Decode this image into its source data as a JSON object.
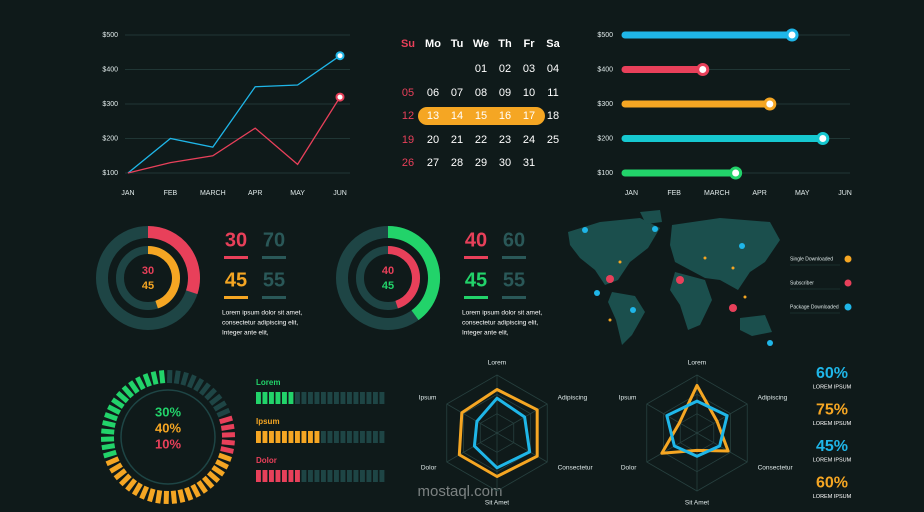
{
  "chart_data": [
    {
      "type": "line",
      "categories": [
        "JAN",
        "FEB",
        "MARCH",
        "APR",
        "MAY",
        "JUN"
      ],
      "ylim": [
        100,
        500
      ],
      "yticks": [
        {
          "value": 100,
          "label": "$100"
        },
        {
          "value": 200,
          "label": "$200"
        },
        {
          "value": 300,
          "label": "$300"
        },
        {
          "value": 400,
          "label": "$400"
        },
        {
          "value": 500,
          "label": "$500"
        }
      ],
      "grid": true,
      "series": [
        {
          "color": "#1fb6e8",
          "values": [
            100,
            200,
            175,
            350,
            355,
            440
          ]
        },
        {
          "color": "#e8405a",
          "values": [
            100,
            130,
            150,
            230,
            125,
            320
          ]
        }
      ]
    },
    {
      "type": "hbar",
      "categories": [
        "$500",
        "$400",
        "$300",
        "$200",
        "$100"
      ],
      "values": [
        3.76,
        1.67,
        3.24,
        4.48,
        2.44
      ],
      "colors": [
        "#1fb6e8",
        "#e8405a",
        "#f5a623",
        "#16c8d0",
        "#22d36a"
      ],
      "xlim": [
        -0.15,
        5
      ],
      "xticks": [
        {
          "value": 0,
          "label": "JAN"
        },
        {
          "value": 1,
          "label": "FEB"
        },
        {
          "value": 2,
          "label": "MARCH"
        },
        {
          "value": 3,
          "label": "APR"
        },
        {
          "value": 4,
          "label": "MAY"
        },
        {
          "value": 5,
          "label": "JUN"
        }
      ],
      "grid": true
    },
    {
      "type": "donut",
      "values": [
        30,
        45
      ],
      "remainders": [
        70,
        55
      ],
      "colors": [
        "#e8405a",
        "#f5a623"
      ],
      "text": [
        "Lorem ipsum dolor sit amet,",
        "consectetur adipiscing elit,",
        "Integer ante elit,"
      ]
    },
    {
      "type": "donut",
      "values": [
        40,
        45
      ],
      "remainders": [
        60,
        55
      ],
      "colors": [
        "#22d36a",
        "#e8405a"
      ],
      "text": [
        "Lorem ipsum dolor sit amet,",
        "consectetur adipiscing elit,",
        "Integer ante elit,"
      ]
    },
    {
      "type": "segmented_gauge",
      "values": [
        30,
        40,
        10
      ],
      "value_labels": [
        "30%",
        "40%",
        "10%"
      ],
      "colors": [
        "#22d36a",
        "#f5a623",
        "#e8405a"
      ]
    },
    {
      "type": "progress",
      "categories": [
        "Lorem",
        "Ipsum",
        "Dolor"
      ],
      "values": [
        30,
        48,
        35
      ],
      "xlim": [
        0,
        100
      ],
      "colors": [
        "#22d36a",
        "#f5a623",
        "#e8405a"
      ]
    },
    {
      "type": "radar",
      "axes": [
        "Lorem",
        "Adipiscing",
        "Consectetur",
        "Sit Amet",
        "Dolor",
        "Ipsum"
      ],
      "rlim": [
        0,
        100
      ],
      "series": [
        {
          "color": "#f5a623",
          "values": [
            75,
            80,
            80,
            75,
            75,
            70
          ]
        },
        {
          "color": "#1fb6e8",
          "values": [
            60,
            55,
            65,
            60,
            45,
            40
          ]
        }
      ]
    },
    {
      "type": "radar",
      "axes": [
        "Lorem",
        "Adipiscing",
        "Consectetur",
        "Sit Amet",
        "Dolor",
        "Ipsum"
      ],
      "rlim": [
        0,
        100
      ],
      "series": [
        {
          "color": "#f5a623",
          "values": [
            82,
            40,
            62,
            30,
            70,
            35
          ]
        },
        {
          "color": "#1fb6e8",
          "values": [
            55,
            60,
            45,
            40,
            45,
            60
          ]
        }
      ]
    },
    {
      "type": "stats",
      "values": [
        60,
        75,
        45,
        60
      ],
      "value_labels": [
        "60%",
        "75%",
        "45%",
        "60%"
      ],
      "labels": [
        "LOREM IPSUM",
        "LOREM IPSUM",
        "LOREM IPSUM",
        "LOREM IPSUM"
      ],
      "colors": [
        "#1fb6e8",
        "#f5a623",
        "#1fb6e8",
        "#f5a623"
      ]
    }
  ],
  "calendar": {
    "weekdays": [
      "Su",
      "Mo",
      "Tu",
      "We",
      "Th",
      "Fr",
      "Sa"
    ],
    "weeks": [
      [
        null,
        null,
        null,
        "01",
        "02",
        "03",
        "04"
      ],
      [
        "05",
        "06",
        "07",
        "08",
        "09",
        "10",
        "11"
      ],
      [
        "12",
        "13",
        "14",
        "15",
        "16",
        "17",
        "18"
      ],
      [
        "19",
        "20",
        "21",
        "22",
        "23",
        "24",
        "25"
      ],
      [
        "26",
        "27",
        "28",
        "29",
        "30",
        "31",
        null
      ]
    ],
    "highlighted": [
      "13",
      "14",
      "15",
      "16",
      "17"
    ]
  },
  "map": {
    "legend": [
      {
        "name": "Single Downloaded",
        "color": "#f5a623"
      },
      {
        "name": "Subscriber",
        "color": "#e8405a"
      },
      {
        "name": "Package Downloaded",
        "color": "#1fb6e8"
      }
    ]
  },
  "watermark": "mostaql.com"
}
